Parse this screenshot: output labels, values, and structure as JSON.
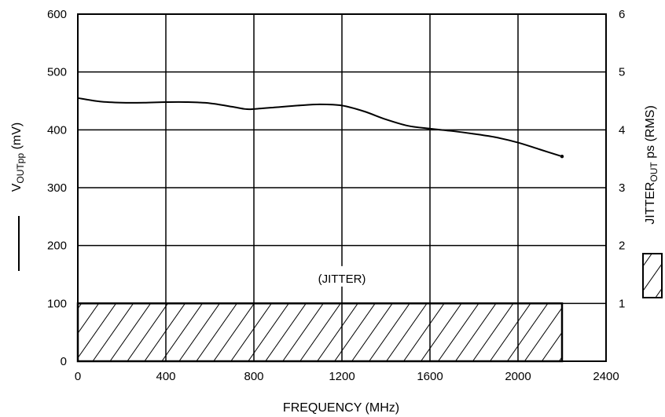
{
  "chart_data": {
    "type": "line",
    "xlabel": "FREQUENCY (MHz)",
    "xlim": [
      0,
      2400
    ],
    "x_ticks": [
      "0",
      "400",
      "800",
      "1200",
      "1600",
      "2000",
      "2400"
    ],
    "left_axis": {
      "label_main": "V",
      "label_sub": "OUTpp",
      "label_unit": " (mV)",
      "ylim": [
        0,
        600
      ],
      "ticks": [
        "0",
        "100",
        "200",
        "300",
        "400",
        "500",
        "600"
      ]
    },
    "right_axis": {
      "label_main": "JITTER",
      "label_sub": "OUT",
      "label_unit": " ps (RMS)",
      "ylim": [
        0,
        6
      ],
      "ticks": [
        "1",
        "2",
        "3",
        "4",
        "5",
        "6"
      ]
    },
    "series": [
      {
        "kind": "line",
        "axis": "left",
        "x": [
          0,
          100,
          200,
          300,
          400,
          500,
          600,
          700,
          760,
          800,
          900,
          1000,
          1100,
          1200,
          1300,
          1400,
          1500,
          1600,
          1700,
          1800,
          1900,
          2000,
          2100,
          2200
        ],
        "y": [
          455,
          449,
          447,
          447,
          448,
          448,
          446,
          440,
          436,
          436,
          439,
          442,
          444,
          442,
          432,
          418,
          407,
          402,
          398,
          393,
          387,
          378,
          366,
          354
        ]
      },
      {
        "kind": "hatched-bar",
        "axis": "right",
        "x_range": [
          0,
          2200
        ],
        "value": 1
      }
    ],
    "annotations": [
      {
        "text": "(JITTER)",
        "x": 1200,
        "y": 140
      }
    ],
    "grid": true,
    "legend": "right-side line and hatch swatches"
  }
}
